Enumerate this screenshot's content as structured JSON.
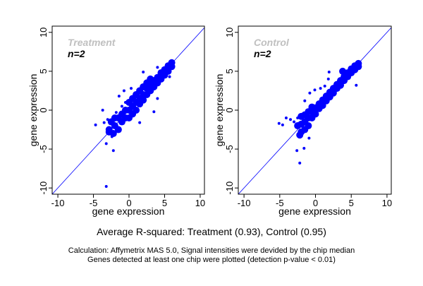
{
  "chart_data": [
    {
      "type": "scatter",
      "title": "Treatment",
      "annotation": "n=2",
      "xlabel": "gene expression",
      "ylabel": "gene expression",
      "xlim": [
        -10.8,
        10.6
      ],
      "ylim": [
        -10.8,
        10.8
      ],
      "xticks": [
        -10,
        -5,
        0,
        5,
        10
      ],
      "yticks": [
        -10,
        -5,
        0,
        5,
        10
      ],
      "reference_line": "y = x",
      "point_color": "#0000ff",
      "title_color": "#c0c0c0",
      "grid": false,
      "points": [
        [
          -2.5,
          -1.5
        ],
        [
          -2,
          -2
        ],
        [
          -2,
          -1
        ],
        [
          -1.5,
          -2.5
        ],
        [
          -1.5,
          -1
        ],
        [
          -1,
          -1.5
        ],
        [
          -1,
          -0.5
        ],
        [
          -1,
          0.5
        ],
        [
          -0.5,
          -1
        ],
        [
          -0.5,
          0
        ],
        [
          -0.5,
          1
        ],
        [
          0,
          -1
        ],
        [
          0,
          0
        ],
        [
          0,
          1
        ],
        [
          0.5,
          -0.5
        ],
        [
          0.5,
          0.5
        ],
        [
          0.5,
          1.5
        ],
        [
          1,
          0
        ],
        [
          1,
          1
        ],
        [
          1,
          2
        ],
        [
          1.5,
          0.8
        ],
        [
          1.5,
          1.5
        ],
        [
          1.5,
          2.5
        ],
        [
          2,
          1.3
        ],
        [
          2,
          2
        ],
        [
          2,
          3
        ],
        [
          2.5,
          2
        ],
        [
          2.5,
          2.8
        ],
        [
          2.5,
          3.5
        ],
        [
          3,
          2.5
        ],
        [
          3,
          3.2
        ],
        [
          3,
          4
        ],
        [
          3.5,
          3
        ],
        [
          3.5,
          3.8
        ],
        [
          4,
          3.5
        ],
        [
          4,
          4.2
        ],
        [
          4.5,
          4
        ],
        [
          4.5,
          4.8
        ],
        [
          5,
          4.5
        ],
        [
          5,
          5.2
        ],
        [
          5.5,
          5
        ],
        [
          5.5,
          5.7
        ],
        [
          6,
          5.6
        ],
        [
          6,
          6.1
        ],
        [
          -2.8,
          -2.5
        ],
        [
          -2.2,
          -3
        ],
        [
          -3,
          -1.2
        ],
        [
          -1.8,
          -0.3
        ],
        [
          -3.7,
          0
        ],
        [
          -4.7,
          -1.9
        ],
        [
          -3.2,
          -4.3
        ],
        [
          -2.2,
          -5.2
        ],
        [
          -3.2,
          -9.8
        ],
        [
          2.0,
          4.9
        ],
        [
          -0.7,
          2.5
        ],
        [
          0.3,
          2.8
        ],
        [
          3.5,
          -0.2
        ],
        [
          -1.4,
          1.8
        ],
        [
          -3.5,
          -1.6
        ],
        [
          -2.8,
          -2.8
        ],
        [
          -2.4,
          -3.4
        ],
        [
          1.5,
          -1.6
        ],
        [
          5.7,
          4.3
        ],
        [
          4.0,
          1.5
        ],
        [
          4.0,
          5.5
        ]
      ]
    },
    {
      "type": "scatter",
      "title": "Control",
      "annotation": "n=2",
      "xlabel": "gene expression",
      "ylabel": "gene expression",
      "xlim": [
        -10.8,
        10.6
      ],
      "ylim": [
        -10.8,
        10.8
      ],
      "xticks": [
        -10,
        -5,
        0,
        5,
        10
      ],
      "yticks": [
        -10,
        -5,
        0,
        5,
        10
      ],
      "reference_line": "y = x",
      "point_color": "#0000ff",
      "title_color": "#c0c0c0",
      "grid": false,
      "points": [
        [
          -3,
          -1.5
        ],
        [
          -2.5,
          -2
        ],
        [
          -2.5,
          -1
        ],
        [
          -2,
          -2.8
        ],
        [
          -2,
          -1.8
        ],
        [
          -2,
          -0.8
        ],
        [
          -1.5,
          -2.5
        ],
        [
          -1.5,
          -1.5
        ],
        [
          -1.5,
          -0.6
        ],
        [
          -1,
          -2
        ],
        [
          -1,
          -1
        ],
        [
          -1,
          -0.2
        ],
        [
          -0.5,
          -1
        ],
        [
          -0.5,
          -0.2
        ],
        [
          -0.5,
          0.4
        ],
        [
          0,
          -0.5
        ],
        [
          0,
          0.3
        ],
        [
          0.5,
          0.2
        ],
        [
          0.5,
          0.8
        ],
        [
          1,
          0.6
        ],
        [
          1,
          1.3
        ],
        [
          1.5,
          1.2
        ],
        [
          1.5,
          1.8
        ],
        [
          2,
          1.7
        ],
        [
          2,
          2.3
        ],
        [
          2.5,
          2.2
        ],
        [
          2.5,
          2.8
        ],
        [
          3,
          2.8
        ],
        [
          3,
          3.3
        ],
        [
          3.5,
          3.2
        ],
        [
          3.5,
          3.8
        ],
        [
          4,
          3.8
        ],
        [
          4,
          4.3
        ],
        [
          4.5,
          4.3
        ],
        [
          4.5,
          4.8
        ],
        [
          5,
          4.8
        ],
        [
          5,
          5.3
        ],
        [
          5.5,
          5.2
        ],
        [
          5.5,
          5.7
        ],
        [
          6,
          5.6
        ],
        [
          6,
          6
        ],
        [
          -2.2,
          -3.2
        ],
        [
          -3.5,
          -1.2
        ],
        [
          -5.1,
          -1.7
        ],
        [
          -4.6,
          -1.9
        ],
        [
          -4.1,
          -1.0
        ],
        [
          -2.6,
          -5.2
        ],
        [
          -1.6,
          -4.9
        ],
        [
          -2.2,
          -6.8
        ],
        [
          -0.9,
          -3.6
        ],
        [
          -0.8,
          2.2
        ],
        [
          -0.1,
          2.6
        ],
        [
          0.7,
          2.8
        ],
        [
          -1.5,
          1.2
        ],
        [
          1.9,
          4.9
        ],
        [
          3.8,
          5.0
        ],
        [
          5.7,
          3.2
        ],
        [
          1.8,
          4.0
        ],
        [
          1.3,
          3.1
        ]
      ]
    }
  ],
  "summary": "Average R-squared: Treatment (0.93), Control (0.95)",
  "footnote": [
    "Calculation: Affymetrix MAS 5.0, Signal intensities were devided by the chip median",
    "Genes detected at least one chip were plotted (detection p-value < 0.01)"
  ]
}
